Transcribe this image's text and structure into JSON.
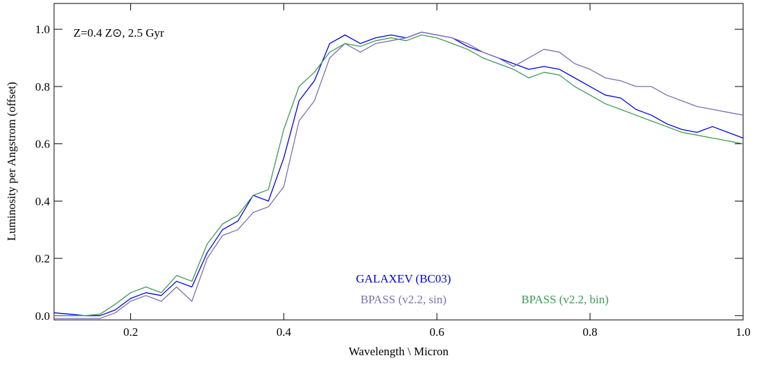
{
  "chart_data": {
    "type": "line",
    "annotation": "Z=0.4 Z⊙,  2.5 Gyr",
    "x_label": "Wavelength \\ Micron",
    "y_label": "Luminosity per Angstrom (offset)",
    "xlim": [
      0.1,
      1.0
    ],
    "ylim": [
      -0.015,
      1.09
    ],
    "xticks": [
      0.2,
      0.4,
      0.6,
      0.8,
      {
        "value": 1.0,
        "label": "1.0"
      }
    ],
    "yticks": [
      {
        "value": 0,
        "label": "0.0"
      },
      0.2,
      0.4,
      0.6,
      0.8,
      {
        "value": 1.0,
        "label": "1.0"
      }
    ],
    "x": [
      0.1,
      0.12,
      0.14,
      0.16,
      0.18,
      0.2,
      0.22,
      0.24,
      0.26,
      0.28,
      0.3,
      0.32,
      0.34,
      0.36,
      0.38,
      0.4,
      0.42,
      0.44,
      0.46,
      0.48,
      0.5,
      0.52,
      0.54,
      0.56,
      0.58,
      0.6,
      0.62,
      0.64,
      0.66,
      0.68,
      0.7,
      0.72,
      0.74,
      0.76,
      0.78,
      0.8,
      0.82,
      0.84,
      0.86,
      0.88,
      0.9,
      0.92,
      0.94,
      0.96,
      0.98,
      1.0
    ],
    "series": [
      {
        "name": "GALAXEV (BC03)",
        "color": "#0000e6",
        "values": [
          0.01,
          0.005,
          0.0,
          0.0,
          0.02,
          0.06,
          0.08,
          0.07,
          0.12,
          0.1,
          0.22,
          0.3,
          0.33,
          0.42,
          0.4,
          0.55,
          0.75,
          0.82,
          0.95,
          0.98,
          0.95,
          0.97,
          0.98,
          0.97,
          0.99,
          0.98,
          0.97,
          0.94,
          0.92,
          0.9,
          0.88,
          0.86,
          0.87,
          0.86,
          0.83,
          0.8,
          0.77,
          0.76,
          0.72,
          0.7,
          0.67,
          0.65,
          0.64,
          0.66,
          0.64,
          0.62
        ]
      },
      {
        "name": "BPASS (v2.2, sin)",
        "color": "#7b6fb3",
        "values": [
          -0.01,
          -0.01,
          -0.01,
          -0.01,
          0.01,
          0.05,
          0.07,
          0.05,
          0.1,
          0.05,
          0.2,
          0.28,
          0.3,
          0.36,
          0.38,
          0.45,
          0.68,
          0.75,
          0.9,
          0.95,
          0.92,
          0.95,
          0.96,
          0.97,
          0.99,
          0.98,
          0.97,
          0.95,
          0.92,
          0.9,
          0.87,
          0.9,
          0.93,
          0.92,
          0.88,
          0.86,
          0.83,
          0.82,
          0.8,
          0.8,
          0.77,
          0.75,
          0.73,
          0.72,
          0.71,
          0.7
        ]
      },
      {
        "name": "BPASS (v2.2, bin)",
        "color": "#3c9a55",
        "values": [
          0.0,
          0.0,
          0.0,
          0.005,
          0.04,
          0.08,
          0.1,
          0.08,
          0.14,
          0.12,
          0.25,
          0.32,
          0.35,
          0.42,
          0.44,
          0.65,
          0.8,
          0.85,
          0.92,
          0.95,
          0.94,
          0.96,
          0.97,
          0.96,
          0.98,
          0.97,
          0.95,
          0.93,
          0.9,
          0.88,
          0.86,
          0.83,
          0.85,
          0.84,
          0.8,
          0.77,
          0.74,
          0.72,
          0.7,
          0.68,
          0.66,
          0.64,
          0.63,
          0.62,
          0.61,
          0.6
        ]
      }
    ]
  }
}
